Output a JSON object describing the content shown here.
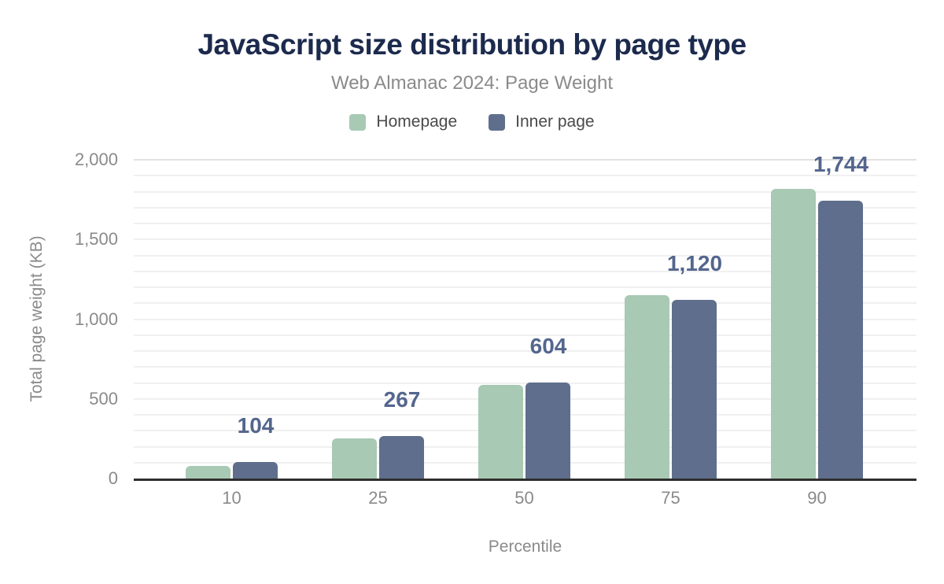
{
  "chart_data": {
    "type": "bar",
    "title": "JavaScript size distribution by page type",
    "subtitle": "Web Almanac 2024: Page Weight",
    "categories": [
      "10",
      "25",
      "50",
      "75",
      "90"
    ],
    "series": [
      {
        "name": "Homepage",
        "color": "#a8c9b4",
        "values": [
          78,
          250,
          589,
          1150,
          1815
        ]
      },
      {
        "name": "Inner page",
        "color": "#5f6e8c",
        "values": [
          104,
          267,
          604,
          1120,
          1744
        ]
      }
    ],
    "data_labels": {
      "series": "Inner page",
      "values": [
        "104",
        "267",
        "604",
        "1,120",
        "1,744"
      ],
      "color": "#54668e"
    },
    "xlabel": "Percentile",
    "ylabel": "Total page weight (KB)",
    "ylim": [
      0,
      2000
    ],
    "yticks": [
      {
        "value": 0,
        "label": "0"
      },
      {
        "value": 500,
        "label": "500"
      },
      {
        "value": 1000,
        "label": "1,000"
      },
      {
        "value": 1500,
        "label": "1,500"
      },
      {
        "value": 2000,
        "label": "2,000"
      }
    ],
    "grid_step": 100,
    "grid": true,
    "legend_position": "top",
    "colors": {
      "title": "#1c2a4d",
      "subtitle": "#8a8a8a",
      "axis_text": "#8a8a8a",
      "legend_text": "#4a4a4a",
      "gridline": "#f0f0f0",
      "gridline_top": "#e2e2e2",
      "baseline": "#2e2e2e"
    }
  }
}
